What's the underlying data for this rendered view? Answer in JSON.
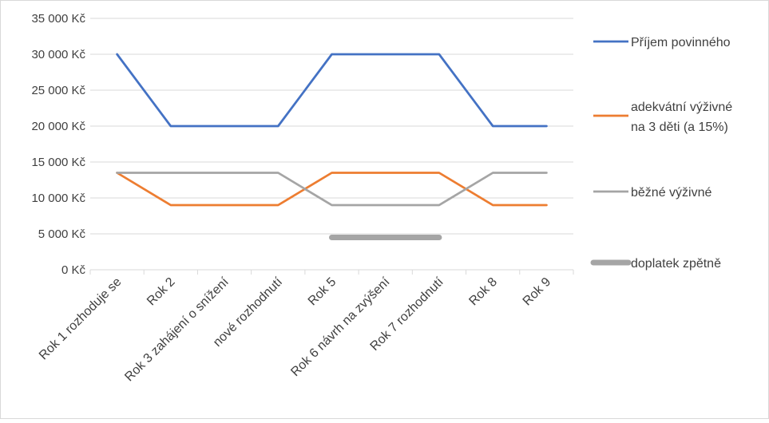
{
  "chart_data": {
    "type": "line",
    "categories": [
      "Rok 1 rozhoduje se",
      "Rok 2",
      "Rok 3 zahájení o snížení",
      "nové rozhodnutí",
      "Rok 5",
      "Rok 6 návrh na zvýšení",
      "Rok 7 rozhodnutí",
      "Rok 8",
      "Rok 9"
    ],
    "ylim": [
      0,
      35000
    ],
    "yticks": [
      "0 Kč",
      "5 000 Kč",
      "10 000 Kč",
      "15 000 Kč",
      "20 000 Kč",
      "25 000 Kč",
      "30 000 Kč",
      "35 000 Kč"
    ],
    "ytick_values": [
      0,
      5000,
      10000,
      15000,
      20000,
      25000,
      30000,
      35000
    ],
    "grid": true,
    "legend_placement": "right",
    "series": [
      {
        "name": "Příjem povinného",
        "color": "#4472C4",
        "values": [
          30000,
          20000,
          20000,
          20000,
          30000,
          30000,
          30000,
          20000,
          20000
        ]
      },
      {
        "name": "adekvátní výživné na 3 děti (a 15%)",
        "name_lines": [
          "adekvátní výživné",
          "na 3 děti (a 15%)"
        ],
        "color": "#ED7D31",
        "values": [
          13500,
          9000,
          9000,
          9000,
          13500,
          13500,
          13500,
          9000,
          9000
        ]
      },
      {
        "name": "běžné výživné",
        "color": "#A5A5A5",
        "values": [
          13500,
          13500,
          13500,
          13500,
          9000,
          9000,
          9000,
          13500,
          13500
        ]
      },
      {
        "name": "doplatek zpětně",
        "color": "#A5A5A5",
        "thick": true,
        "values": [
          null,
          null,
          null,
          null,
          4500,
          4500,
          4500,
          null,
          null
        ]
      }
    ]
  }
}
